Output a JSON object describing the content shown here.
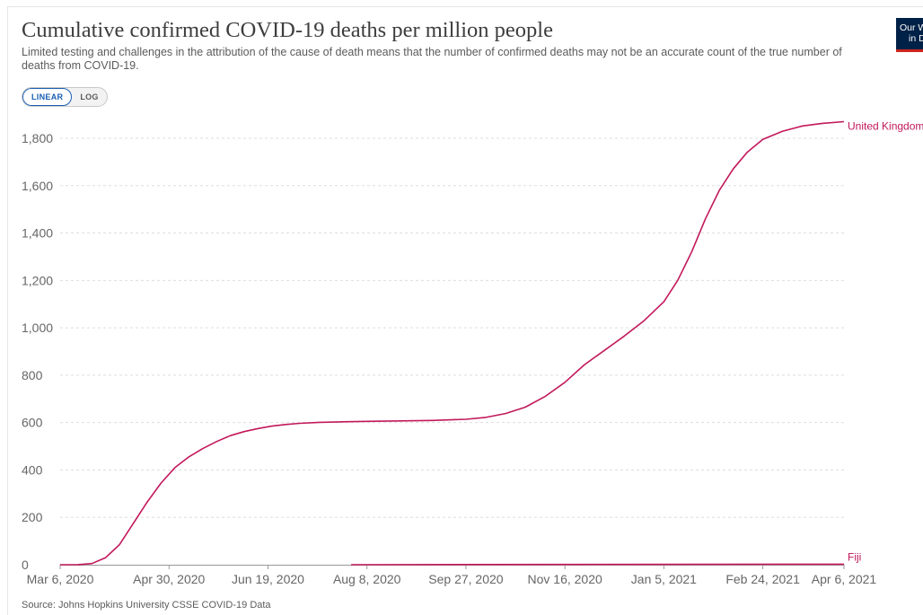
{
  "header": {
    "title": "Cumulative confirmed COVID-19 deaths per million people",
    "subtitle": "Limited testing and challenges in the attribution of the cause of death means that the number of confirmed deaths may not be an accurate count of the true number of deaths from COVID-19.",
    "logo_line1": "Our World",
    "logo_line2": "in Data"
  },
  "controls": {
    "linear_label": "LINEAR",
    "log_label": "LOG",
    "selected": "LINEAR"
  },
  "footer": {
    "source": "Source: Johns Hopkins University CSSE COVID-19 Data"
  },
  "colors": {
    "series": "#c2185b",
    "grid": "#dddddd",
    "axis": "#666666"
  },
  "chart_data": {
    "type": "line",
    "title": "Cumulative confirmed COVID-19 deaths per million people",
    "x_ticks": [
      "Mar 6, 2020",
      "Apr 30, 2020",
      "Jun 19, 2020",
      "Aug 8, 2020",
      "Sep 27, 2020",
      "Nov 16, 2020",
      "Jan 5, 2021",
      "Feb 24, 2021",
      "Apr 6, 2021"
    ],
    "y_ticks": [
      0,
      200,
      400,
      600,
      800,
      1000,
      1200,
      1400,
      1600,
      1800
    ],
    "y_tick_labels": [
      "0",
      "200",
      "400",
      "600",
      "800",
      "1,000",
      "1,200",
      "1,400",
      "1,600",
      "1,800"
    ],
    "xlim": [
      "2020-03-06",
      "2021-04-06"
    ],
    "ylim": [
      0,
      1800
    ],
    "grid": "horizontal-dashed",
    "legend": "inline-end-labels",
    "series": [
      {
        "name": "United Kingdom",
        "points": [
          [
            "2020-03-06",
            0
          ],
          [
            "2020-03-15",
            0.5
          ],
          [
            "2020-03-22",
            5
          ],
          [
            "2020-03-29",
            30
          ],
          [
            "2020-04-05",
            85
          ],
          [
            "2020-04-12",
            175
          ],
          [
            "2020-04-19",
            265
          ],
          [
            "2020-04-26",
            345
          ],
          [
            "2020-05-03",
            410
          ],
          [
            "2020-05-10",
            455
          ],
          [
            "2020-05-17",
            490
          ],
          [
            "2020-05-24",
            520
          ],
          [
            "2020-05-31",
            545
          ],
          [
            "2020-06-07",
            562
          ],
          [
            "2020-06-14",
            575
          ],
          [
            "2020-06-21",
            585
          ],
          [
            "2020-06-28",
            592
          ],
          [
            "2020-07-05",
            597
          ],
          [
            "2020-07-15",
            601
          ],
          [
            "2020-07-25",
            603
          ],
          [
            "2020-08-08",
            605
          ],
          [
            "2020-08-25",
            607
          ],
          [
            "2020-09-10",
            609
          ],
          [
            "2020-09-27",
            614
          ],
          [
            "2020-10-07",
            622
          ],
          [
            "2020-10-17",
            638
          ],
          [
            "2020-10-27",
            665
          ],
          [
            "2020-11-06",
            710
          ],
          [
            "2020-11-16",
            770
          ],
          [
            "2020-11-26",
            845
          ],
          [
            "2020-12-06",
            905
          ],
          [
            "2020-12-16",
            965
          ],
          [
            "2020-12-26",
            1030
          ],
          [
            "2021-01-05",
            1110
          ],
          [
            "2021-01-12",
            1200
          ],
          [
            "2021-01-19",
            1320
          ],
          [
            "2021-01-26",
            1460
          ],
          [
            "2021-02-02",
            1580
          ],
          [
            "2021-02-09",
            1670
          ],
          [
            "2021-02-16",
            1740
          ],
          [
            "2021-02-24",
            1795
          ],
          [
            "2021-03-06",
            1830
          ],
          [
            "2021-03-16",
            1852
          ],
          [
            "2021-03-26",
            1863
          ],
          [
            "2021-04-06",
            1870
          ]
        ]
      },
      {
        "name": "Fiji",
        "points": [
          [
            "2020-07-31",
            0
          ],
          [
            "2020-11-16",
            1.1
          ],
          [
            "2021-04-06",
            2.2
          ]
        ]
      }
    ]
  }
}
